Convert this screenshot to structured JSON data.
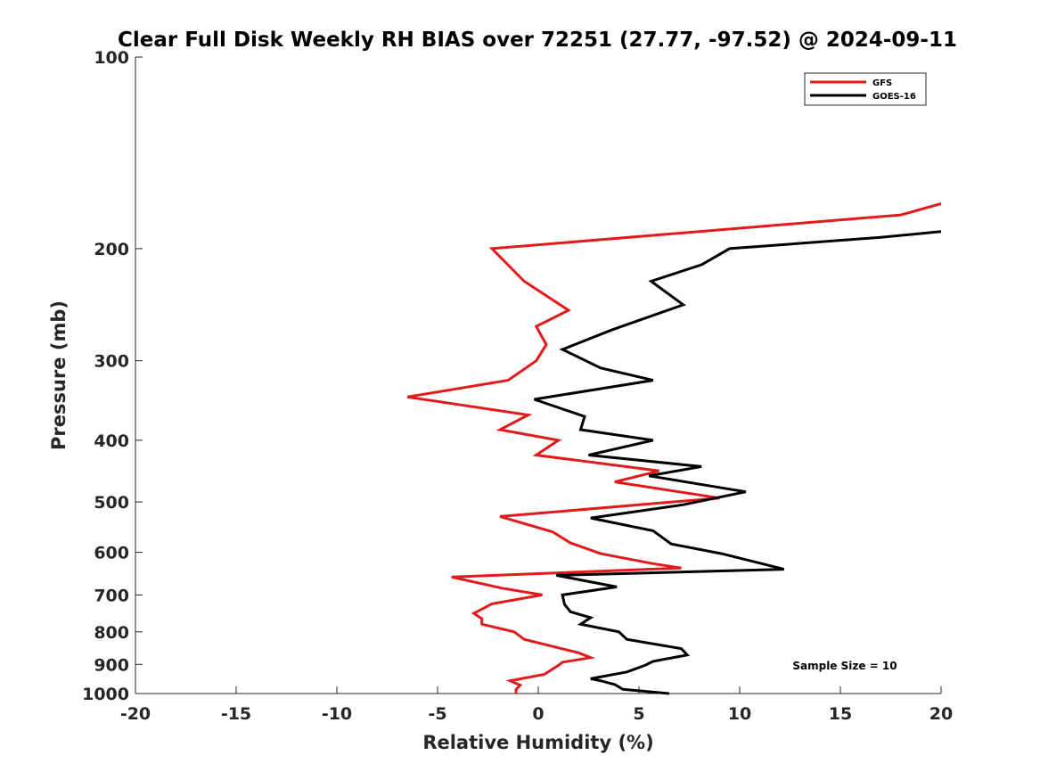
{
  "chart_data": {
    "type": "line",
    "title": "Clear Full Disk Weekly RH BIAS over 72251 (27.77, -97.52) @ 2024-09-11",
    "xlabel": "Relative Humidity (%)",
    "ylabel": "Pressure (mb)",
    "xlim": [
      -20,
      20
    ],
    "ylim": [
      100,
      1000
    ],
    "y_scale": "log",
    "y_reversed": true,
    "x_ticks": [
      "-20",
      "-15",
      "-10",
      "-5",
      "0",
      "5",
      "10",
      "15",
      "20"
    ],
    "y_ticks": [
      "100",
      "200",
      "300",
      "400",
      "500",
      "600",
      "700",
      "800",
      "900",
      "1000"
    ],
    "legend_position": "top-right",
    "annotation": "Sample Size = 10",
    "series": [
      {
        "name": "GFS",
        "color": "#e31a1c",
        "points": [
          [
            20,
            170
          ],
          [
            18,
            177
          ],
          [
            -2.3,
            200
          ],
          [
            -0.7,
            225
          ],
          [
            1.5,
            250
          ],
          [
            -0.1,
            265
          ],
          [
            0.4,
            283
          ],
          [
            -0.1,
            300
          ],
          [
            -1.5,
            322
          ],
          [
            -6.5,
            342
          ],
          [
            -0.5,
            365
          ],
          [
            -1.9,
            385
          ],
          [
            1.0,
            400
          ],
          [
            -0.1,
            422
          ],
          [
            6.0,
            447
          ],
          [
            3.8,
            465
          ],
          [
            9.0,
            493
          ],
          [
            -1.9,
            527
          ],
          [
            0.7,
            557
          ],
          [
            1.6,
            580
          ],
          [
            3.1,
            603
          ],
          [
            5.7,
            625
          ],
          [
            7.1,
            635
          ],
          [
            -4.3,
            656
          ],
          [
            -1.8,
            683
          ],
          [
            0.2,
            700
          ],
          [
            -2.3,
            723
          ],
          [
            -3.2,
            748
          ],
          [
            -2.8,
            763
          ],
          [
            -2.8,
            778
          ],
          [
            -1.2,
            800
          ],
          [
            -0.7,
            822
          ],
          [
            2.0,
            863
          ],
          [
            2.6,
            878
          ],
          [
            1.2,
            893
          ],
          [
            1.0,
            903
          ],
          [
            0.3,
            933
          ],
          [
            -1.4,
            955
          ],
          [
            -0.9,
            970
          ],
          [
            -1.1,
            985
          ],
          [
            -1.1,
            1000
          ]
        ]
      },
      {
        "name": "GOES-16",
        "color": "#000000",
        "points": [
          [
            20,
            188
          ],
          [
            17,
            192
          ],
          [
            9.5,
            200
          ],
          [
            8.1,
            212
          ],
          [
            5.6,
            225
          ],
          [
            7.2,
            245
          ],
          [
            3.7,
            268
          ],
          [
            1.2,
            288
          ],
          [
            3.1,
            308
          ],
          [
            5.7,
            322
          ],
          [
            -0.2,
            345
          ],
          [
            2.3,
            367
          ],
          [
            2.1,
            385
          ],
          [
            5.7,
            400
          ],
          [
            2.5,
            422
          ],
          [
            8.1,
            440
          ],
          [
            5.5,
            455
          ],
          [
            10.3,
            482
          ],
          [
            7.2,
            505
          ],
          [
            2.6,
            530
          ],
          [
            5.7,
            555
          ],
          [
            6.6,
            582
          ],
          [
            9.1,
            603
          ],
          [
            11.1,
            625
          ],
          [
            12.2,
            638
          ],
          [
            0.9,
            652
          ],
          [
            3.9,
            680
          ],
          [
            1.2,
            700
          ],
          [
            1.3,
            724
          ],
          [
            1.6,
            744
          ],
          [
            2.6,
            760
          ],
          [
            2.1,
            778
          ],
          [
            4.0,
            800
          ],
          [
            4.4,
            822
          ],
          [
            7.1,
            850
          ],
          [
            7.4,
            870
          ],
          [
            5.7,
            890
          ],
          [
            5.3,
            903
          ],
          [
            4.4,
            925
          ],
          [
            2.6,
            948
          ],
          [
            3.1,
            955
          ],
          [
            3.8,
            968
          ],
          [
            4.2,
            985
          ],
          [
            6.5,
            1000
          ]
        ]
      }
    ]
  }
}
